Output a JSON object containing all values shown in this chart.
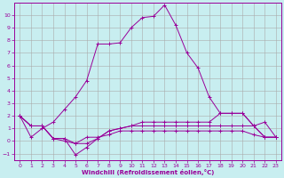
{
  "xlabel": "Windchill (Refroidissement éolien,°C)",
  "background_color": "#c8eef0",
  "grid_color": "#aaaaaa",
  "line_color": "#990099",
  "xlim_min": -0.5,
  "xlim_max": 23.5,
  "ylim_min": -1.5,
  "ylim_max": 11.0,
  "xticks": [
    0,
    1,
    2,
    3,
    4,
    5,
    6,
    7,
    8,
    9,
    10,
    11,
    12,
    13,
    14,
    15,
    16,
    17,
    18,
    19,
    20,
    21,
    22,
    23
  ],
  "yticks": [
    -1,
    0,
    1,
    2,
    3,
    4,
    5,
    6,
    7,
    8,
    9,
    10
  ],
  "series1_x": [
    0,
    1,
    2,
    3,
    4,
    5,
    6,
    7,
    8,
    9,
    10,
    11,
    12,
    13,
    14,
    15,
    16,
    17,
    18,
    19,
    20,
    21,
    22,
    23
  ],
  "series1_y": [
    2.0,
    0.3,
    1.0,
    1.5,
    2.5,
    3.5,
    4.8,
    7.7,
    7.7,
    7.8,
    9.0,
    9.8,
    9.9,
    10.8,
    9.2,
    7.0,
    5.8,
    3.5,
    2.2,
    2.2,
    2.2,
    1.2,
    1.5,
    0.3
  ],
  "series2_x": [
    0,
    1,
    2,
    3,
    4,
    5,
    6,
    7,
    8,
    9,
    10,
    11,
    12,
    13,
    14,
    15,
    16,
    17,
    18,
    19,
    20,
    21,
    22,
    23
  ],
  "series2_y": [
    2.0,
    1.2,
    1.2,
    0.2,
    0.2,
    -0.2,
    -0.2,
    0.2,
    0.8,
    1.0,
    1.2,
    1.5,
    1.5,
    1.5,
    1.5,
    1.5,
    1.5,
    1.5,
    2.2,
    2.2,
    2.2,
    1.2,
    0.3,
    0.3
  ],
  "series3_x": [
    0,
    1,
    2,
    3,
    4,
    5,
    6,
    7,
    8,
    9,
    10,
    11,
    12,
    13,
    14,
    15,
    16,
    17,
    18,
    19,
    20,
    21,
    22,
    23
  ],
  "series3_y": [
    2.0,
    1.2,
    1.2,
    0.2,
    0.2,
    -1.1,
    -0.5,
    0.2,
    0.8,
    1.0,
    1.2,
    1.2,
    1.2,
    1.2,
    1.2,
    1.2,
    1.2,
    1.2,
    1.2,
    1.2,
    1.2,
    1.2,
    0.3,
    0.3
  ],
  "series4_x": [
    0,
    1,
    2,
    3,
    4,
    5,
    6,
    7,
    8,
    9,
    10,
    11,
    12,
    13,
    14,
    15,
    16,
    17,
    18,
    19,
    20,
    21,
    22,
    23
  ],
  "series4_y": [
    2.0,
    1.2,
    1.2,
    0.2,
    0.0,
    -0.2,
    0.3,
    0.3,
    0.5,
    0.8,
    0.8,
    0.8,
    0.8,
    0.8,
    0.8,
    0.8,
    0.8,
    0.8,
    0.8,
    0.8,
    0.8,
    0.5,
    0.3,
    0.3
  ]
}
